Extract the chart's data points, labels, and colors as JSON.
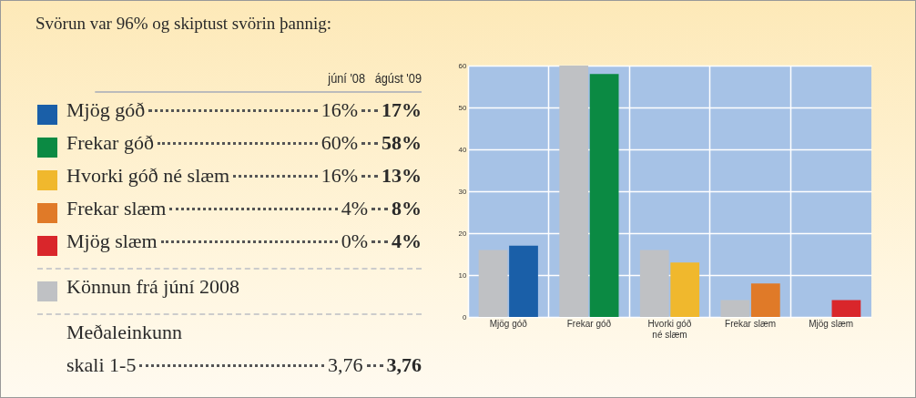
{
  "chart_data": {
    "type": "bar",
    "title": "Svörun var 96% og skiptust svörin þannig:",
    "categories": [
      "Mjög góð",
      "Frekar góð",
      "Hvorki góð né slæm",
      "Frekar slæm",
      "Mjög slæm"
    ],
    "series": [
      {
        "name": "Könnun frá júní 2008",
        "color": "#bfc1c4",
        "values": [
          16,
          60,
          16,
          4,
          0
        ]
      },
      {
        "colors": [
          "#1a5fa8",
          "#0b8a43",
          "#f0b82d",
          "#e07a28",
          "#d9262b"
        ],
        "values": [
          17,
          58,
          13,
          8,
          4
        ]
      }
    ],
    "ylim": [
      0,
      60
    ],
    "yticks": [
      0,
      10,
      20,
      30,
      40,
      50,
      60
    ],
    "grid": true,
    "legend": "left",
    "annotations": [
      "júní '08",
      "ágúst '09",
      "16%",
      "17%",
      "60%",
      "58%",
      "16%",
      "13%",
      "4%",
      "8%",
      "0%",
      "4%",
      "Meðaleinkunn",
      "skali 1-5",
      "3,76",
      "3,76"
    ]
  }
}
